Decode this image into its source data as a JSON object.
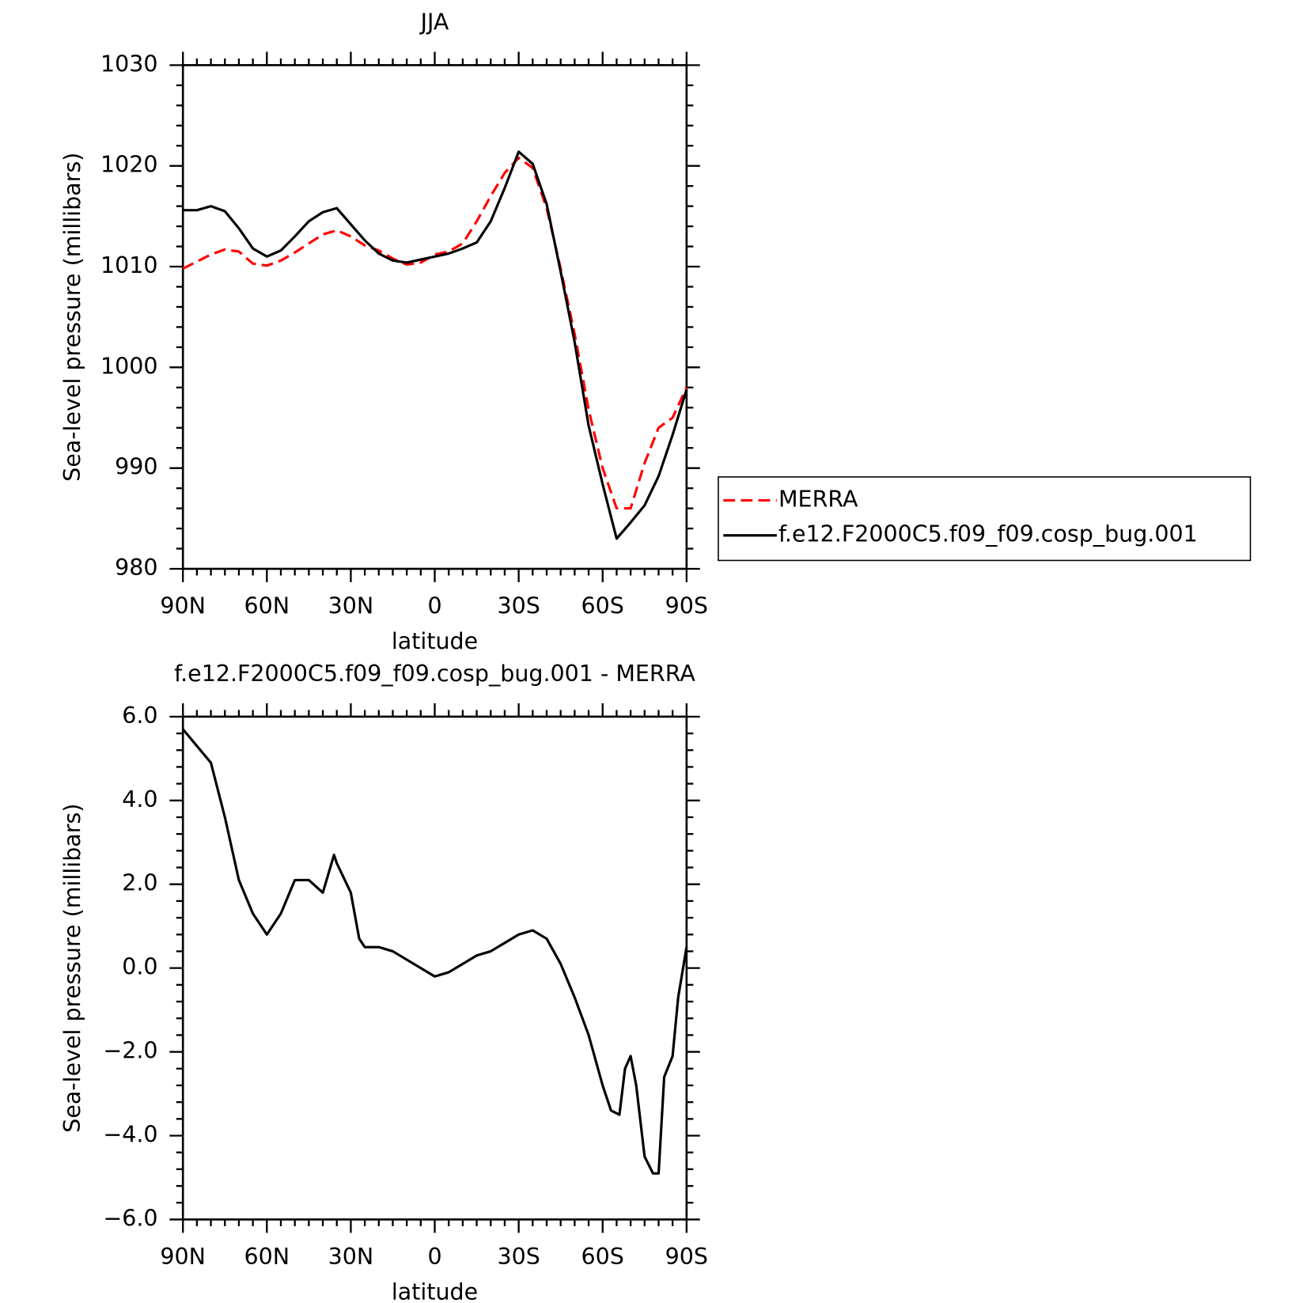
{
  "chart_data": [
    {
      "type": "line",
      "title": "JJA",
      "x_label": "latitude",
      "y_label": "Sea-level pressure (millibars)",
      "x": [
        90,
        85,
        80,
        75,
        70,
        65,
        60,
        55,
        50,
        45,
        40,
        35,
        30,
        25,
        20,
        15,
        10,
        5,
        0,
        -5,
        -10,
        -15,
        -20,
        -25,
        -30,
        -35,
        -40,
        -45,
        -50,
        -55,
        -60,
        -65,
        -70,
        -75,
        -80,
        -85,
        -90
      ],
      "xlim": [
        90,
        -90
      ],
      "xticks": [
        {
          "value": 90,
          "label": "90N"
        },
        {
          "value": 60,
          "label": "60N"
        },
        {
          "value": 30,
          "label": "30N"
        },
        0,
        {
          "value": -30,
          "label": "30S"
        },
        {
          "value": -60,
          "label": "60S"
        },
        {
          "value": -90,
          "label": "90S"
        }
      ],
      "ylim": [
        980,
        1030
      ],
      "yticks": [
        980,
        990,
        1000,
        1010,
        1020,
        1030
      ],
      "legend": "right",
      "series": [
        {
          "name": "MERRA",
          "color": "#ff0000",
          "linestyle": "dashed",
          "values": [
            1009.8,
            1010.5,
            1011.2,
            1011.7,
            1011.5,
            1010.3,
            1010.1,
            1010.6,
            1011.4,
            1012.3,
            1013.2,
            1013.6,
            1013.0,
            1012.1,
            1011.6,
            1010.8,
            1010.2,
            1010.4,
            1011.2,
            1011.5,
            1012.3,
            1014.5,
            1017.0,
            1019.3,
            1020.8,
            1019.8,
            1015.8,
            1009.8,
            1003.3,
            995.8,
            990.0,
            986.0,
            986.0,
            990.5,
            994.0,
            995.0,
            998.0
          ]
        },
        {
          "name": "f.e12.F2000C5.f09_f09.cosp_bug.001",
          "color": "#000000",
          "linestyle": "solid",
          "values": [
            1015.6,
            1015.6,
            1016.0,
            1015.5,
            1013.8,
            1011.8,
            1011.0,
            1011.6,
            1013.0,
            1014.5,
            1015.4,
            1015.8,
            1014.2,
            1012.6,
            1011.3,
            1010.6,
            1010.4,
            1010.7,
            1011.0,
            1011.3,
            1011.8,
            1012.4,
            1014.5,
            1017.8,
            1021.4,
            1020.2,
            1016.2,
            1009.5,
            1002.5,
            994.2,
            988.4,
            983.0,
            984.6,
            986.3,
            989.2,
            993.3,
            997.8
          ]
        }
      ]
    },
    {
      "type": "line",
      "title": "f.e12.F2000C5.f09_f09.cosp_bug.001 - MERRA",
      "x_label": "latitude",
      "y_label": "Sea-level pressure (millibars)",
      "x": [
        90,
        85,
        80,
        75,
        70,
        65,
        60,
        55,
        50,
        45,
        40,
        36,
        35,
        30,
        27,
        25,
        20,
        15,
        10,
        5,
        0,
        -5,
        -10,
        -15,
        -20,
        -25,
        -30,
        -35,
        -40,
        -45,
        -50,
        -55,
        -60,
        -63,
        -66,
        -68,
        -70,
        -72,
        -75,
        -78,
        -80,
        -82,
        -85,
        -87,
        -90
      ],
      "xlim": [
        90,
        -90
      ],
      "xticks": [
        {
          "value": 90,
          "label": "90N"
        },
        {
          "value": 60,
          "label": "60N"
        },
        {
          "value": 30,
          "label": "30N"
        },
        0,
        {
          "value": -30,
          "label": "30S"
        },
        {
          "value": -60,
          "label": "60S"
        },
        {
          "value": -90,
          "label": "90S"
        }
      ],
      "ylim": [
        -6,
        6
      ],
      "yticks": [
        {
          "value": -6,
          "label": "−6.0"
        },
        {
          "value": -4,
          "label": "−4.0"
        },
        {
          "value": -2,
          "label": "−2.0"
        },
        {
          "value": 0,
          "label": "0.0"
        },
        {
          "value": 2,
          "label": "2.0"
        },
        {
          "value": 4,
          "label": "4.0"
        },
        {
          "value": 6,
          "label": "6.0"
        }
      ],
      "color": "#000000",
      "values": [
        5.7,
        5.3,
        4.9,
        3.6,
        2.1,
        1.3,
        0.8,
        1.3,
        2.1,
        2.1,
        1.8,
        2.7,
        2.5,
        1.8,
        0.7,
        0.5,
        0.5,
        0.4,
        0.2,
        0.0,
        -0.2,
        -0.1,
        0.1,
        0.3,
        0.4,
        0.6,
        0.8,
        0.9,
        0.7,
        0.1,
        -0.7,
        -1.6,
        -2.8,
        -3.4,
        -3.5,
        -2.4,
        -2.1,
        -2.8,
        -4.5,
        -4.9,
        -4.9,
        -2.6,
        -2.1,
        -0.7,
        0.5
      ]
    }
  ]
}
